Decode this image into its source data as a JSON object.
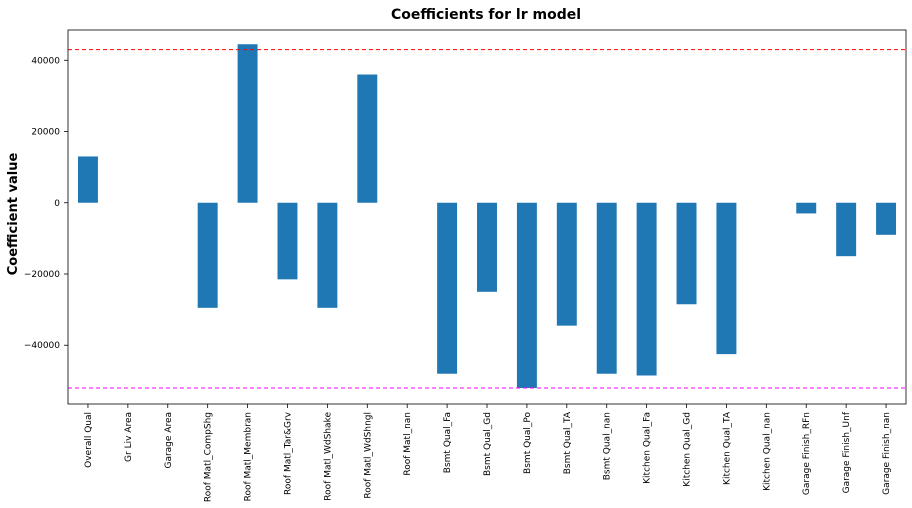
{
  "chart_data": {
    "type": "bar",
    "title": "Coefficients for lr model",
    "xlabel": "",
    "ylabel": "Coefficient value",
    "ylim": [
      -56500,
      48500
    ],
    "yticks": [
      -40000,
      -20000,
      0,
      20000,
      40000
    ],
    "grid": false,
    "bar_color": "#1f77b4",
    "categories": [
      "Overall Qual",
      "Gr Liv Area",
      "Garage Area",
      "Roof Matl_CompShg",
      "Roof Matl_Membran",
      "Roof Matl_Tar&Grv",
      "Roof Matl_WdShake",
      "Roof Matl_WdShngl",
      "Roof Matl_nan",
      "Bsmt Qual_Fa",
      "Bsmt Qual_Gd",
      "Bsmt Qual_Po",
      "Bsmt Qual_TA",
      "Bsmt Qual_nan",
      "Kitchen Qual_Fa",
      "Kitchen Qual_Gd",
      "Kitchen Qual_TA",
      "Kitchen Qual_nan",
      "Garage Finish_RFn",
      "Garage Finish_Unf",
      "Garage Finish_nan"
    ],
    "values": [
      13000,
      0,
      0,
      -29500,
      44500,
      -21500,
      -29500,
      36000,
      0,
      -48000,
      -25000,
      -52000,
      -34500,
      -48000,
      -48500,
      -28500,
      -42500,
      0,
      -3000,
      -15000,
      -9000
    ],
    "reference_lines": [
      {
        "value": 43000,
        "color": "#ff0000",
        "style": "dashed"
      },
      {
        "value": -52000,
        "color": "#ff00ff",
        "style": "dashed"
      }
    ]
  }
}
